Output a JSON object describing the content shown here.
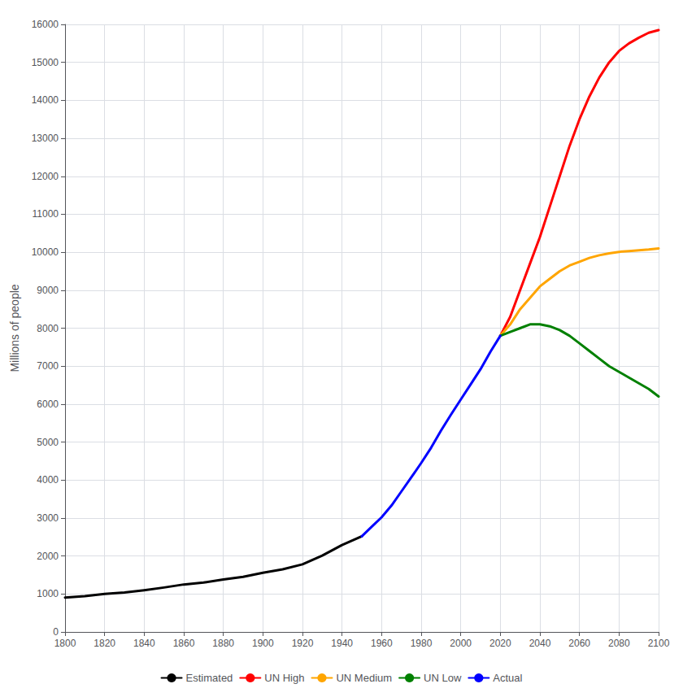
{
  "chart_data": {
    "type": "line",
    "ylabel": "Millions of people",
    "xlim": [
      1800,
      2100
    ],
    "ylim": [
      0,
      16000
    ],
    "xticks": [
      1800,
      1820,
      1840,
      1860,
      1880,
      1900,
      1920,
      1940,
      1960,
      1980,
      2000,
      2020,
      2040,
      2060,
      2080,
      2100
    ],
    "yticks": [
      0,
      1000,
      2000,
      3000,
      4000,
      5000,
      6000,
      7000,
      8000,
      9000,
      10000,
      11000,
      12000,
      13000,
      14000,
      15000,
      16000
    ],
    "grid": true,
    "legend": "bottom",
    "series": [
      {
        "name": "Estimated",
        "color": "#000000",
        "x": [
          1800,
          1810,
          1820,
          1830,
          1840,
          1850,
          1860,
          1870,
          1880,
          1890,
          1900,
          1910,
          1920,
          1930,
          1940,
          1950
        ],
        "values": [
          906,
          940,
          1000,
          1040,
          1100,
          1170,
          1250,
          1300,
          1380,
          1450,
          1560,
          1650,
          1780,
          2010,
          2290,
          2520
        ]
      },
      {
        "name": "UN High",
        "color": "#ff0000",
        "x": [
          2020,
          2025,
          2030,
          2035,
          2040,
          2045,
          2050,
          2055,
          2060,
          2065,
          2070,
          2075,
          2080,
          2085,
          2090,
          2095,
          2100
        ],
        "values": [
          7800,
          8300,
          9000,
          9700,
          10400,
          11200,
          12000,
          12800,
          13500,
          14100,
          14600,
          15000,
          15300,
          15500,
          15650,
          15780,
          15850
        ]
      },
      {
        "name": "UN Medium",
        "color": "#ffa500",
        "x": [
          2020,
          2025,
          2030,
          2035,
          2040,
          2045,
          2050,
          2055,
          2060,
          2065,
          2070,
          2075,
          2080,
          2085,
          2090,
          2095,
          2100
        ],
        "values": [
          7800,
          8100,
          8500,
          8800,
          9100,
          9300,
          9500,
          9650,
          9750,
          9850,
          9920,
          9970,
          10010,
          10030,
          10050,
          10070,
          10100
        ]
      },
      {
        "name": "UN Low",
        "color": "#008000",
        "x": [
          2020,
          2025,
          2030,
          2035,
          2040,
          2045,
          2050,
          2055,
          2060,
          2065,
          2070,
          2075,
          2080,
          2085,
          2090,
          2095,
          2100
        ],
        "values": [
          7800,
          7900,
          8000,
          8100,
          8100,
          8050,
          7950,
          7800,
          7600,
          7400,
          7200,
          7000,
          6850,
          6700,
          6550,
          6400,
          6200
        ]
      },
      {
        "name": "Actual",
        "color": "#0000ff",
        "x": [
          1950,
          1955,
          1960,
          1965,
          1970,
          1975,
          1980,
          1985,
          1990,
          1995,
          2000,
          2005,
          2010,
          2015,
          2020
        ],
        "values": [
          2520,
          2770,
          3020,
          3330,
          3700,
          4070,
          4450,
          4850,
          5300,
          5720,
          6120,
          6520,
          6920,
          7380,
          7800
        ]
      }
    ]
  }
}
